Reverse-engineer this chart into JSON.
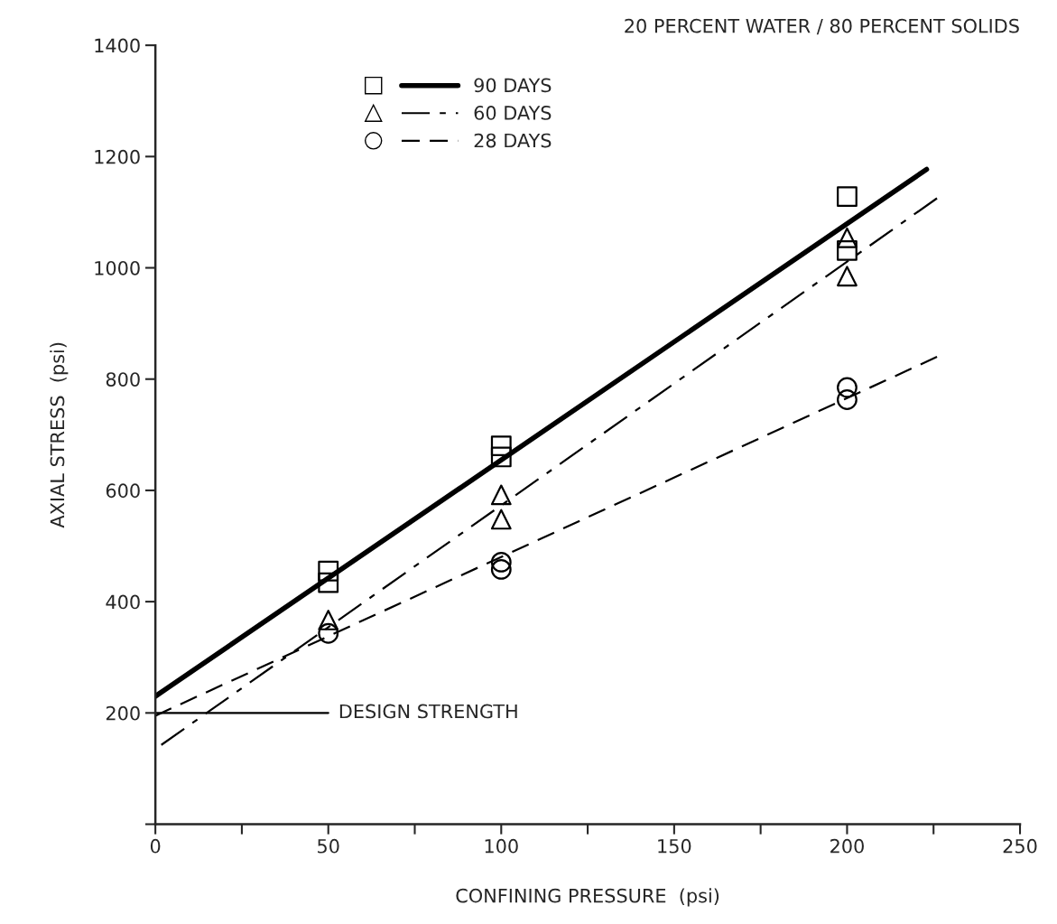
{
  "chart_data": {
    "type": "scatter",
    "title": "20 PERCENT WATER / 80 PERCENT SOLIDS",
    "xlabel": "CONFINING PRESSURE  (psi)",
    "ylabel": "AXIAL STRESS  (psi)",
    "xlim": [
      0,
      250
    ],
    "ylim": [
      0,
      1400
    ],
    "xticks": [
      0,
      {
        "value": 25,
        "label": null
      },
      50,
      {
        "value": 75,
        "label": null
      },
      100,
      {
        "value": 125,
        "label": null
      },
      150,
      {
        "value": 175,
        "label": null
      },
      200,
      {
        "value": 225,
        "label": null
      },
      250
    ],
    "yticks": [
      {
        "value": 0,
        "label": null
      },
      200,
      400,
      600,
      800,
      1000,
      1200,
      1400
    ],
    "grid": false,
    "legend": "top left",
    "series": [
      {
        "marker": "square",
        "color": "#000000",
        "x": [
          50,
          50,
          100,
          100,
          200,
          200
        ],
        "values": [
          455,
          434,
          680,
          660,
          1128,
          1031
        ]
      },
      {
        "name": "90 DAYS",
        "type": "line",
        "line_style": "solid",
        "color": "#000000",
        "x": [
          0,
          223
        ],
        "values": [
          230,
          1177
        ]
      },
      {
        "marker": "triangle",
        "color": "#000000",
        "x": [
          50,
          100,
          100,
          200,
          200
        ],
        "values": [
          367,
          592,
          548,
          1054,
          985
        ]
      },
      {
        "name": "60 DAYS",
        "type": "line",
        "line_style": "dashdot",
        "color": "#000000",
        "x": [
          0,
          226
        ],
        "values": [
          135,
          1125
        ]
      },
      {
        "marker": "circle",
        "color": "#000000",
        "x": [
          50,
          100,
          100,
          200,
          200
        ],
        "values": [
          343,
          471,
          458,
          785,
          763
        ]
      },
      {
        "name": "28 DAYS",
        "type": "line",
        "line_style": "dashed",
        "color": "#000000",
        "x": [
          0,
          226
        ],
        "values": [
          195,
          840
        ]
      },
      {
        "type": "line",
        "line_style": "solid",
        "color": "#000000",
        "x": [
          0,
          50
        ],
        "values": [
          200,
          200
        ]
      }
    ],
    "annotations": [
      {
        "text": "DESIGN STRENGTH",
        "x": 50,
        "y": 200
      }
    ]
  }
}
